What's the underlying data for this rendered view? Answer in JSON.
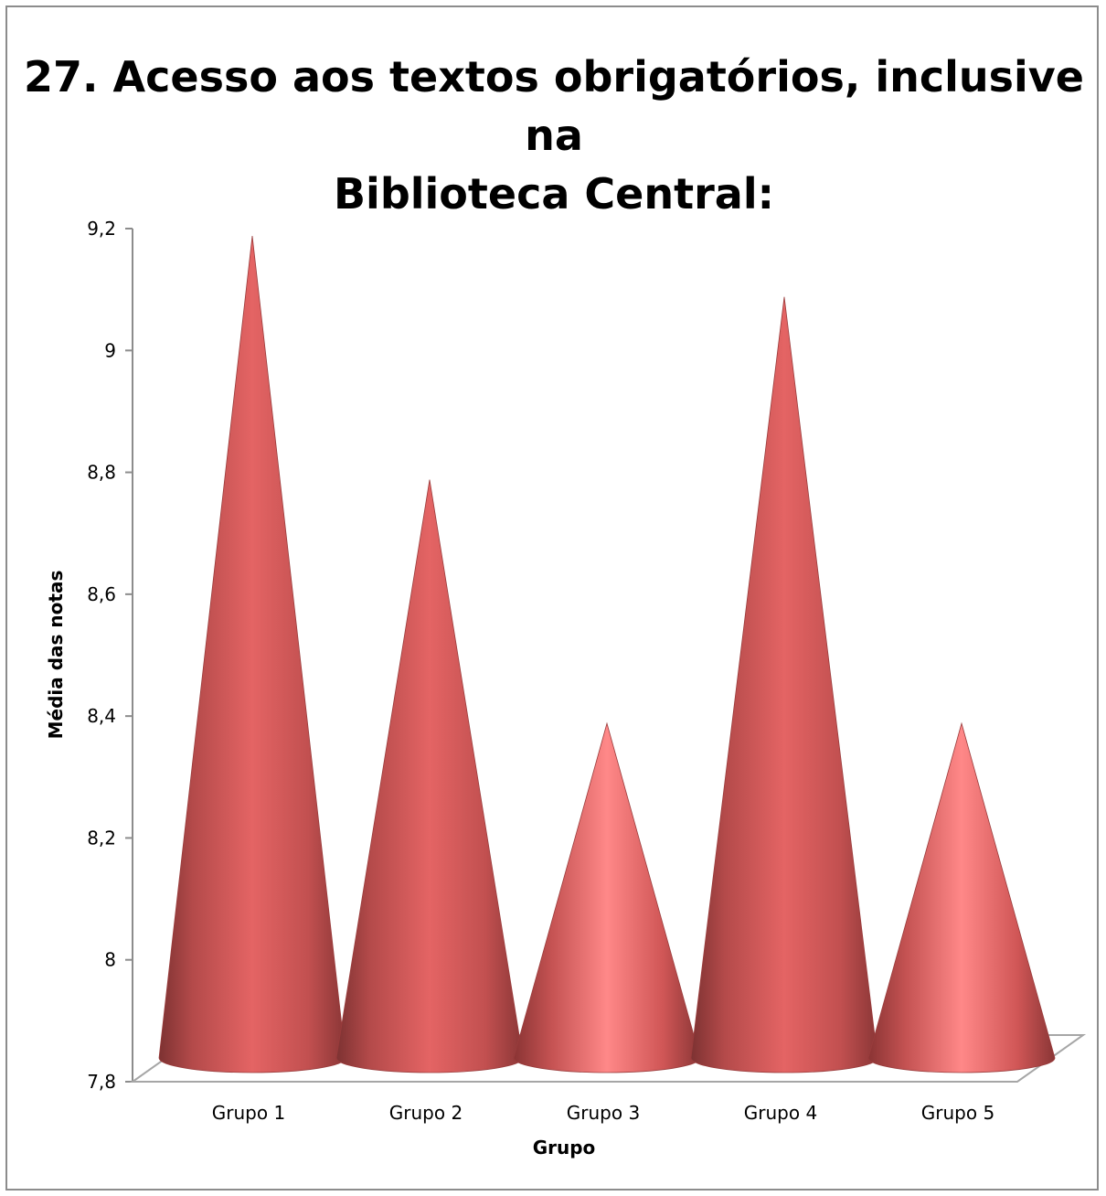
{
  "chart_data": {
    "type": "bar",
    "bar_shape": "cone-3d",
    "title": "27. Acesso aos textos obrigatórios, inclusive na Biblioteca Central:",
    "title_lines": [
      "27. Acesso aos textos obrigatórios, inclusive na",
      "Biblioteca Central:"
    ],
    "categories": [
      "Grupo 1",
      "Grupo 2",
      "Grupo 3",
      "Grupo 4",
      "Grupo 5"
    ],
    "values": [
      9.14,
      8.74,
      8.34,
      9.04,
      8.34
    ],
    "xlabel": "Grupo",
    "ylabel": "Média das notas",
    "ylim": [
      7.8,
      9.2
    ],
    "yticks": [
      7.8,
      8,
      8.2,
      8.4,
      8.6,
      8.8,
      9,
      9.2
    ],
    "ytick_labels": [
      "7,8",
      "8",
      "8,2",
      "8,4",
      "8,6",
      "8,8",
      "9",
      "9,2"
    ],
    "grid": false,
    "legend": "none",
    "colors": {
      "cone_dark": "#8e3a3a",
      "cone_mid": "#d45858",
      "cone_light": "#ff8585",
      "axis": "#8c8c8c"
    }
  }
}
